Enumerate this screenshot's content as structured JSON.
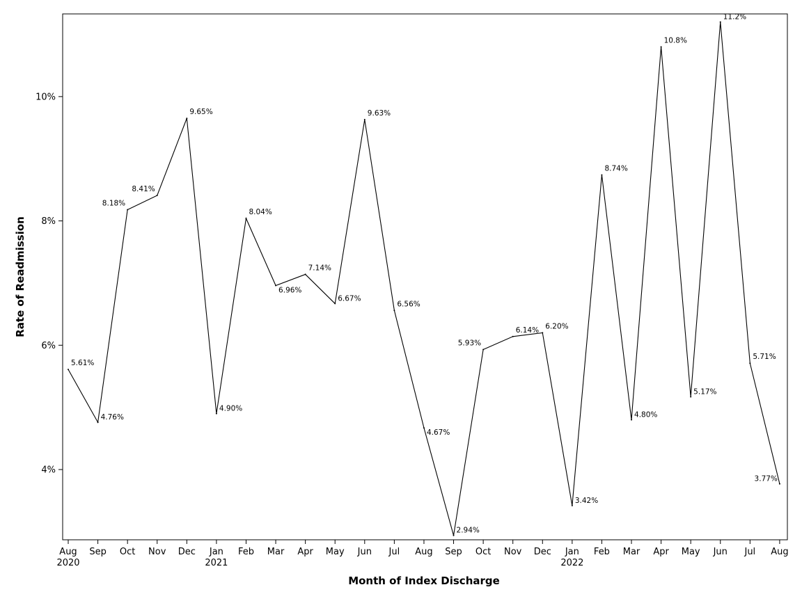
{
  "chart_data": {
    "type": "line",
    "xlabel": "Month of Index Discharge",
    "ylabel": "Rate of Readmission",
    "ylim": [
      2.87,
      11.33
    ],
    "y_ticks": [
      {
        "value": 4,
        "label": "4%"
      },
      {
        "value": 6,
        "label": "6%"
      },
      {
        "value": 8,
        "label": "8%"
      },
      {
        "value": 10,
        "label": "10%"
      }
    ],
    "x_ticks": [
      {
        "month": "Aug",
        "year": "2020"
      },
      {
        "month": "Sep",
        "year": ""
      },
      {
        "month": "Oct",
        "year": ""
      },
      {
        "month": "Nov",
        "year": ""
      },
      {
        "month": "Dec",
        "year": ""
      },
      {
        "month": "Jan",
        "year": "2021"
      },
      {
        "month": "Feb",
        "year": ""
      },
      {
        "month": "Mar",
        "year": ""
      },
      {
        "month": "Apr",
        "year": ""
      },
      {
        "month": "May",
        "year": ""
      },
      {
        "month": "Jun",
        "year": ""
      },
      {
        "month": "Jul",
        "year": ""
      },
      {
        "month": "Aug",
        "year": ""
      },
      {
        "month": "Sep",
        "year": ""
      },
      {
        "month": "Oct",
        "year": ""
      },
      {
        "month": "Nov",
        "year": ""
      },
      {
        "month": "Dec",
        "year": ""
      },
      {
        "month": "Jan",
        "year": "2022"
      },
      {
        "month": "Feb",
        "year": ""
      },
      {
        "month": "Mar",
        "year": ""
      },
      {
        "month": "Apr",
        "year": ""
      },
      {
        "month": "May",
        "year": ""
      },
      {
        "month": "Jun",
        "year": ""
      },
      {
        "month": "Jul",
        "year": ""
      },
      {
        "month": "Aug",
        "year": ""
      }
    ],
    "x": [
      "2020-08-01",
      "2020-09-01",
      "2020-10-01",
      "2020-11-01",
      "2020-12-01",
      "2021-01-01",
      "2021-02-01",
      "2021-03-01",
      "2021-04-01",
      "2021-05-01",
      "2021-06-01",
      "2021-07-01",
      "2021-08-01",
      "2021-09-01",
      "2021-10-01",
      "2021-11-01",
      "2021-12-01",
      "2022-01-01",
      "2022-02-01",
      "2022-03-01",
      "2022-04-01",
      "2022-05-01",
      "2022-06-01",
      "2022-07-01",
      "2022-08-01"
    ],
    "series": [
      {
        "values": [
          5.61,
          4.76,
          8.18,
          8.41,
          9.65,
          4.9,
          8.04,
          6.96,
          7.14,
          6.67,
          9.63,
          6.56,
          4.67,
          2.94,
          5.93,
          6.14,
          6.2,
          3.42,
          8.74,
          4.8,
          10.8,
          5.17,
          11.2,
          5.71,
          3.77
        ],
        "labels": [
          "5.61%",
          "4.76%",
          "8.18%",
          "8.41%",
          "9.65%",
          "4.90%",
          "8.04%",
          "6.96%",
          "7.14%",
          "6.67%",
          "9.63%",
          "6.56%",
          "4.67%",
          "2.94%",
          "5.93%",
          "6.14%",
          "6.20%",
          "3.42%",
          "8.74%",
          "4.80%",
          "10.8%",
          "5.17%",
          "11.2%",
          "5.71%",
          "3.77%"
        ],
        "label_positions": [
          "above-right",
          "right",
          "above-left",
          "above-left",
          "above-right",
          "right",
          "above-right",
          "below-right",
          "above-right",
          "right",
          "above-right",
          "above-right",
          "below-right",
          "right",
          "above-left",
          "above-right",
          "above-right",
          "right",
          "above-right",
          "right",
          "above-right",
          "right",
          "right",
          "above-right",
          "left"
        ],
        "color": "#000000"
      }
    ],
    "grid": false,
    "legend": "none"
  }
}
